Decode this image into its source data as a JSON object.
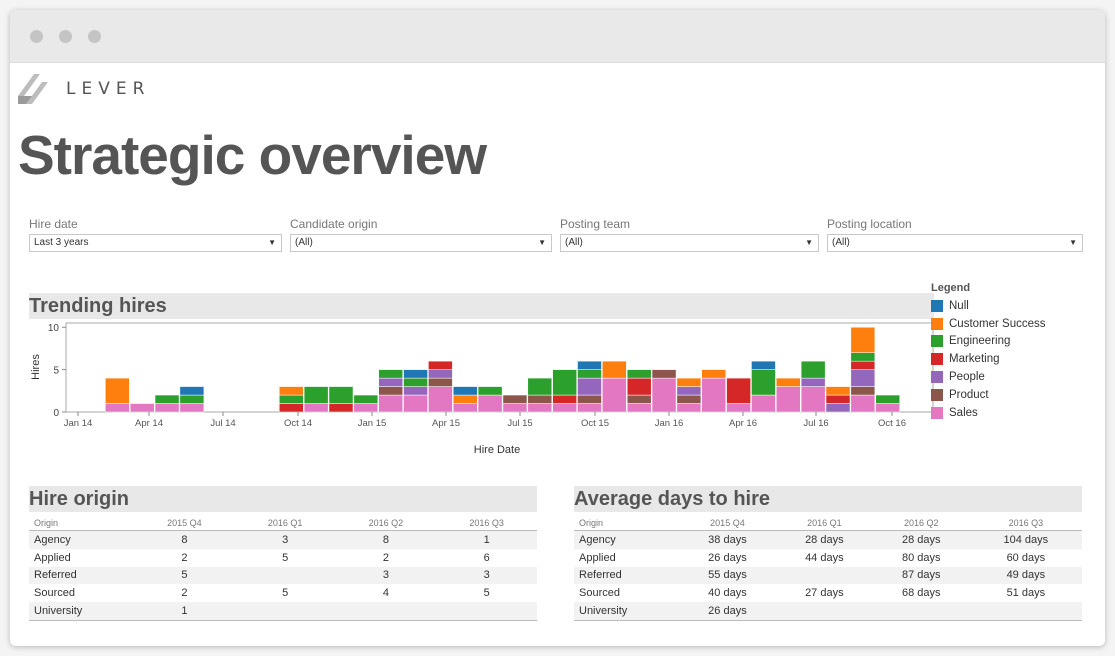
{
  "logo": {
    "text": "LEVER"
  },
  "page_title": "Strategic overview",
  "filters": [
    {
      "label": "Hire date",
      "value": "Last 3 years"
    },
    {
      "label": "Candidate origin",
      "value": "(All)"
    },
    {
      "label": "Posting team",
      "value": "(All)"
    },
    {
      "label": "Posting location",
      "value": "(All)"
    }
  ],
  "trending": {
    "title": "Trending hires",
    "ylabel": "Hires",
    "xlabel": "Hire Date",
    "yticks": [
      "10",
      "5",
      "0"
    ],
    "xticks": [
      "Jan 14",
      "Apr 14",
      "Jul 14",
      "Oct 14",
      "Jan 15",
      "Apr 15",
      "Jul 15",
      "Oct 15",
      "Jan 16",
      "Apr 16",
      "Jul 16",
      "Oct 16"
    ]
  },
  "legend": {
    "title": "Legend",
    "items": [
      {
        "label": "Null",
        "color": "#1f77b4"
      },
      {
        "label": "Customer Success",
        "color": "#ff7f0e"
      },
      {
        "label": "Engineering",
        "color": "#2ca02c"
      },
      {
        "label": "Marketing",
        "color": "#d62728"
      },
      {
        "label": "People",
        "color": "#9467bd"
      },
      {
        "label": "Product",
        "color": "#8c564b"
      },
      {
        "label": "Sales",
        "color": "#e377c2"
      }
    ]
  },
  "chart_data": {
    "type": "bar",
    "stacked": true,
    "ylim": [
      0,
      10.5
    ],
    "xlabel": "Hire Date",
    "ylabel": "Hires",
    "categories": [
      "Feb 14",
      "Mar 14",
      "Apr 14",
      "May 14",
      "Jun 14",
      "Jul 14",
      "Aug 14",
      "Sep 14",
      "Oct 14",
      "Nov 14",
      "Dec 14",
      "Jan 15",
      "Feb 15",
      "Mar 15",
      "Apr 15",
      "May 15",
      "Jun 15",
      "Jul 15",
      "Aug 15",
      "Sep 15",
      "Oct 15",
      "Nov 15",
      "Dec 15",
      "Jan 16",
      "Feb 16",
      "Mar 16",
      "Apr 16",
      "May 16",
      "Jun 16",
      "Jul 16",
      "Aug 16",
      "Sep 16",
      "Oct 16"
    ],
    "series": [
      {
        "name": "Sales",
        "values": [
          0,
          1,
          1,
          1,
          1,
          0,
          0,
          0,
          0,
          1,
          0,
          1,
          2,
          2,
          3,
          1,
          2,
          1,
          1,
          1,
          1,
          4,
          1,
          4,
          1,
          4,
          1,
          2,
          3,
          3,
          0,
          2,
          1
        ]
      },
      {
        "name": "Product",
        "values": [
          0,
          0,
          0,
          0,
          0,
          0,
          0,
          0,
          0,
          0,
          0,
          0,
          1,
          0,
          1,
          0,
          0,
          1,
          1,
          0,
          1,
          0,
          1,
          1,
          1,
          0,
          0,
          0,
          0,
          0,
          0,
          1,
          0
        ]
      },
      {
        "name": "People",
        "values": [
          0,
          0,
          0,
          0,
          0,
          0,
          0,
          0,
          0,
          0,
          0,
          0,
          1,
          1,
          1,
          0,
          0,
          0,
          0,
          0,
          2,
          0,
          0,
          0,
          1,
          0,
          0,
          0,
          0,
          1,
          1,
          2,
          0
        ]
      },
      {
        "name": "Marketing",
        "values": [
          0,
          0,
          0,
          0,
          0,
          0,
          0,
          0,
          1,
          0,
          1,
          0,
          0,
          0,
          1,
          0,
          0,
          0,
          0,
          1,
          0,
          0,
          2,
          0,
          0,
          0,
          3,
          0,
          0,
          0,
          1,
          1,
          0
        ]
      },
      {
        "name": "Engineering",
        "values": [
          0,
          0,
          0,
          1,
          1,
          0,
          0,
          0,
          1,
          2,
          2,
          1,
          1,
          1,
          0,
          0,
          1,
          0,
          2,
          3,
          1,
          0,
          1,
          0,
          0,
          0,
          0,
          3,
          0,
          2,
          0,
          1,
          1
        ]
      },
      {
        "name": "Customer Success",
        "values": [
          0,
          3,
          0,
          0,
          0,
          0,
          0,
          0,
          1,
          0,
          0,
          0,
          0,
          0,
          0,
          1,
          0,
          0,
          0,
          0,
          0,
          2,
          0,
          0,
          1,
          1,
          0,
          0,
          1,
          0,
          1,
          3,
          0
        ]
      },
      {
        "name": "Null",
        "values": [
          0,
          0,
          0,
          0,
          1,
          0,
          0,
          0,
          0,
          0,
          0,
          0,
          0,
          1,
          0,
          1,
          0,
          0,
          0,
          0,
          1,
          0,
          0,
          0,
          0,
          0,
          0,
          1,
          0,
          0,
          0,
          0,
          0
        ]
      }
    ]
  },
  "hire_origin": {
    "title": "Hire origin",
    "columns": [
      "Origin",
      "2015 Q4",
      "2016 Q1",
      "2016 Q2",
      "2016 Q3"
    ],
    "rows": [
      [
        "Agency",
        "8",
        "3",
        "8",
        "1"
      ],
      [
        "Applied",
        "2",
        "5",
        "2",
        "6"
      ],
      [
        "Referred",
        "5",
        "",
        "3",
        "3"
      ],
      [
        "Sourced",
        "2",
        "5",
        "4",
        "5"
      ],
      [
        "University",
        "1",
        "",
        "",
        ""
      ]
    ]
  },
  "avg_days": {
    "title": "Average days to hire",
    "columns": [
      "Origin",
      "2015 Q4",
      "2016 Q1",
      "2016 Q2",
      "2016 Q3"
    ],
    "rows": [
      [
        "Agency",
        "38 days",
        "28 days",
        "28 days",
        "104 days"
      ],
      [
        "Applied",
        "26 days",
        "44 days",
        "80 days",
        "60 days"
      ],
      [
        "Referred",
        "55 days",
        "",
        "87 days",
        "49 days"
      ],
      [
        "Sourced",
        "40 days",
        "27 days",
        "68 days",
        "51 days"
      ],
      [
        "University",
        "26 days",
        "",
        "",
        ""
      ]
    ]
  }
}
